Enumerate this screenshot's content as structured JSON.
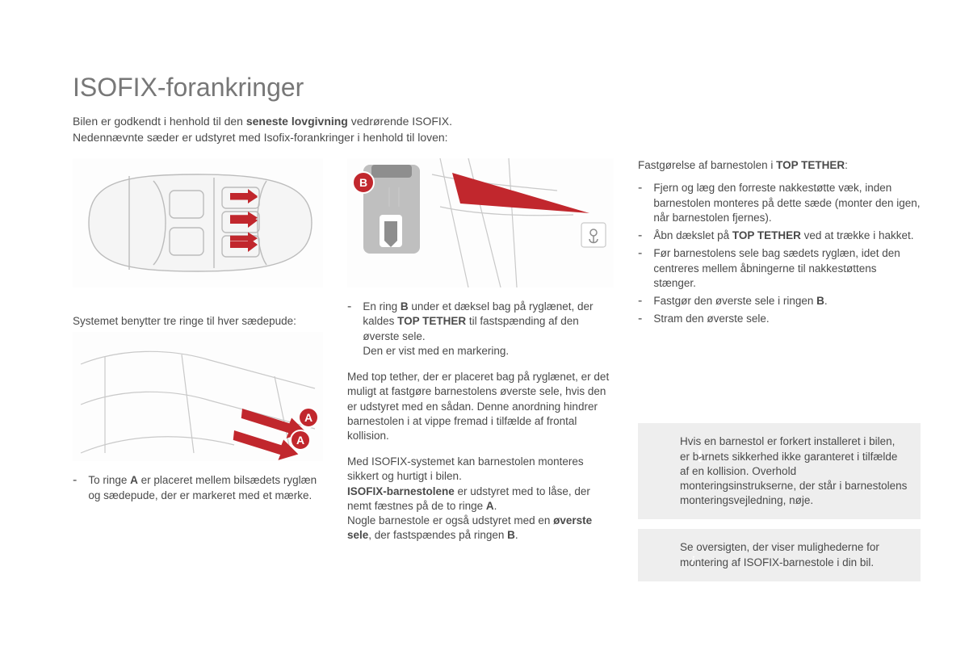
{
  "title": "ISOFIX-forankringer",
  "intro_html": "Bilen er godkendt i henhold til den <b>seneste lovgivning</b> vedrørende ISOFIX.<br>Nedennævnte sæder er udstyret med Isofix-forankringer i henhold til loven:",
  "left": {
    "system_caption": "Systemet benytter tre ringe til hver sædepude:",
    "ringA_html": "To ringe <b>A</b> er placeret mellem bilsædets ryglæn og sædepude, der er markeret med et mærke."
  },
  "mid": {
    "ringB_html": "En ring <b>B</b> under et dæksel bag på ryglænet, der kaldes <b>TOP TETHER</b> til fastspænding af den øverste sele.<br>Den er vist med en markering.",
    "para1": "Med top tether, der er placeret bag på ryglænet, er det muligt at fastgøre barnestolens øverste sele, hvis den er udstyret med en sådan. Denne anordning hindrer barnestolen i at vippe fremad i tilfælde af frontal kollision.",
    "para2_html": "Med ISOFIX-systemet kan barnestolen monteres sikkert og hurtigt i bilen.<br><b>ISOFIX-barnestolene</b> er udstyret med to låse, der nemt fæstnes på de to ringe <b>A</b>.<br>Nogle barnestole er også udstyret med en <b>øverste sele</b>, der fastspændes på ringen <b>B</b>."
  },
  "right": {
    "heading_html": "Fastgørelse af barnestolen i <b>TOP TETHER</b>:",
    "steps": [
      "Fjern og læg den forreste nakkestøtte væk, inden barnestolen monteres på dette sæde (monter den igen, når barnestolen fjernes).",
      "Åbn dækslet på <b>TOP TETHER</b> ved at trække i hakket.",
      "Før barnestolens sele bag sædets ryglæn, idet den centreres mellem åbningerne til nakkestøttens stænger.",
      "Fastgør den øverste sele i ringen <b>B</b>.",
      "Stram den øverste sele."
    ],
    "warning": "Hvis en barnestol er forkert installeret i bilen, er barnets sikkerhed ikke garanteret i tilfælde af en kollision. Overhold monteringsinstrukserne, der står i barnestolens monteringsvejledning, nøje.",
    "info": "Se oversigten, der viser mulighederne for montering af ISOFIX-barnestole i din bil."
  },
  "labels": {
    "A": "A",
    "B": "B"
  },
  "colors": {
    "accent_red": "#c1272d",
    "outline_grey": "#bcbcbc",
    "notice_bg": "#eeeeee",
    "info_blue": "#1a9dd8",
    "warn_red": "#d62121",
    "text": "#4a4a4a",
    "title_grey": "#777777"
  }
}
